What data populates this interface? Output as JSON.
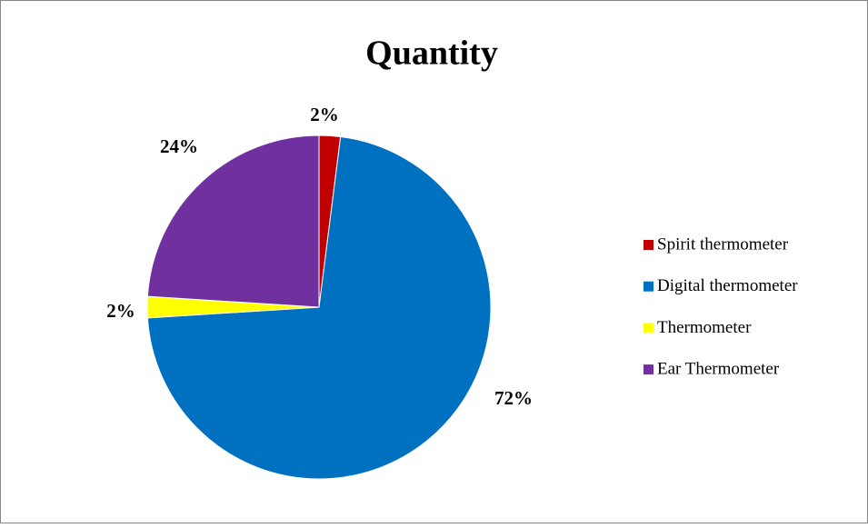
{
  "chart_data": {
    "type": "pie",
    "title": "Quantity",
    "categories": [
      "Spirit thermometer",
      "Digital thermometer",
      "Thermometer",
      "Ear Thermometer"
    ],
    "values": [
      2,
      72,
      2,
      24
    ],
    "value_labels": [
      "2%",
      "72%",
      "2%",
      "24%"
    ],
    "colors": [
      "#c00000",
      "#0070c0",
      "#ffff00",
      "#7030a0"
    ],
    "legend": "right"
  }
}
